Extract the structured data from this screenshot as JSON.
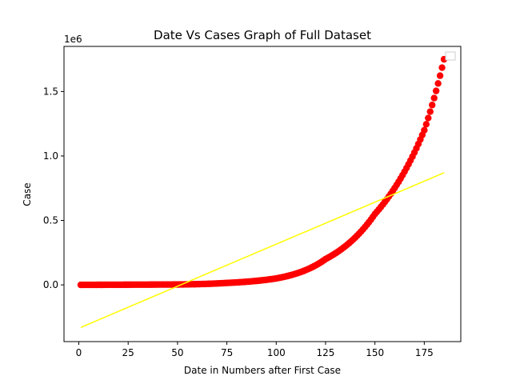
{
  "chart_data": {
    "type": "scatter",
    "title": "Date Vs Cases Graph of Full Dataset",
    "xlabel": "Date in Numbers after First Case",
    "ylabel": "Case",
    "y_offset_label": "1e6",
    "xlim": [
      -7.5,
      193.5
    ],
    "ylim": [
      -0.44,
      1.85
    ],
    "x_ticks": [
      0,
      25,
      50,
      75,
      100,
      125,
      150,
      175
    ],
    "x_tick_labels": [
      "0",
      "25",
      "50",
      "75",
      "100",
      "125",
      "150",
      "175"
    ],
    "y_ticks": [
      0.0,
      0.5,
      1.0,
      1.5
    ],
    "y_tick_labels": [
      "0.0",
      "0.5",
      "1.0",
      "1.5"
    ],
    "grid": false,
    "legend": {
      "placement": "top-right",
      "entries": []
    },
    "series": [
      {
        "kind": "points",
        "color": "#ff0000",
        "x_start": 1,
        "x_end": 185,
        "x_step": 1,
        "model": "exponential",
        "anchor_points": [
          [
            1,
            0.0
          ],
          [
            50,
            0.003
          ],
          [
            75,
            0.015
          ],
          [
            100,
            0.05
          ],
          [
            125,
            0.2
          ],
          [
            150,
            0.55
          ],
          [
            175,
            1.2
          ],
          [
            185,
            1.75
          ]
        ]
      },
      {
        "kind": "line",
        "color": "#ffff00",
        "x": [
          1,
          185
        ],
        "y": [
          -0.33,
          0.87
        ]
      }
    ]
  }
}
